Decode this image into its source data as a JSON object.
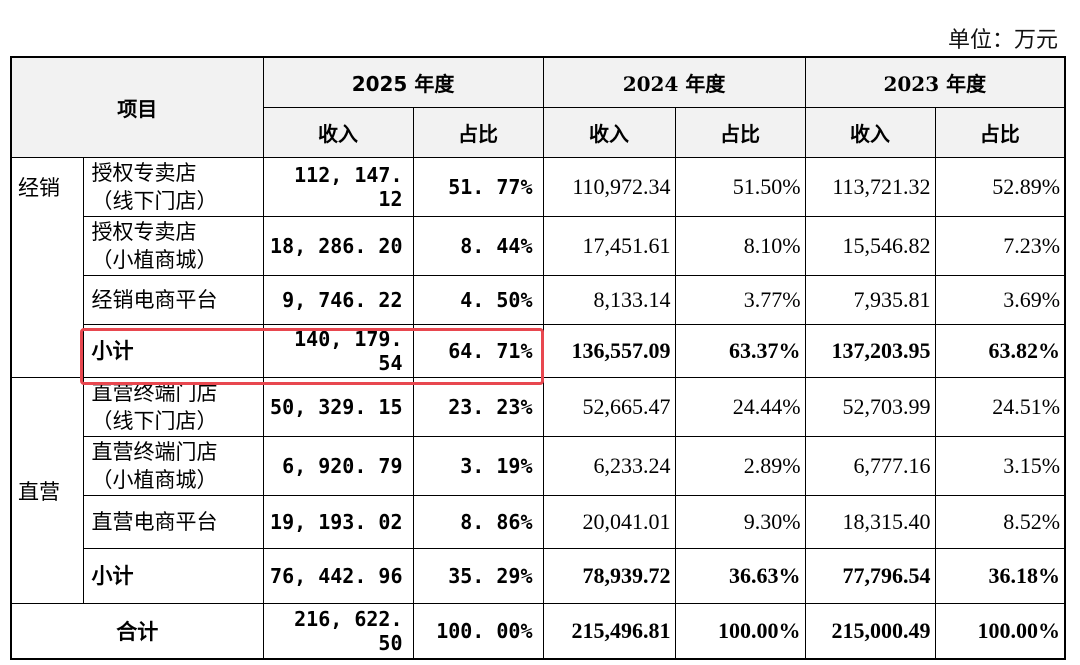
{
  "unit_label": "单位：万元",
  "header": {
    "item_label": "项目",
    "years": [
      "2025 年度",
      "2024 年度",
      "2023 年度"
    ],
    "sub": [
      "收入",
      "占比"
    ]
  },
  "categories": {
    "distribution": "经销",
    "direct": "直营"
  },
  "rows": [
    {
      "item": [
        "授权专卖店",
        "（线下门店）"
      ],
      "r25": "112, 147. 12",
      "p25": "51. 77%",
      "r24": "110,972.34",
      "p24": "51.50%",
      "r23": "113,721.32",
      "p23": "52.89%"
    },
    {
      "item": [
        "授权专卖店",
        "（小植商城）"
      ],
      "r25": "18, 286. 20",
      "p25": "8. 44%",
      "r24": "17,451.61",
      "p24": "8.10%",
      "r23": "15,546.82",
      "p23": "7.23%"
    },
    {
      "item": [
        "经销电商平台"
      ],
      "r25": "9, 746. 22",
      "p25": "4. 50%",
      "r24": "8,133.14",
      "p24": "3.77%",
      "r23": "7,935.81",
      "p23": "3.69%"
    },
    {
      "item": [
        "小计"
      ],
      "r25": "140, 179. 54",
      "p25": "64. 71%",
      "r24": "136,557.09",
      "p24": "63.37%",
      "r23": "137,203.95",
      "p23": "63.82%"
    },
    {
      "item": [
        "直营终端门店",
        "（线下门店）"
      ],
      "r25": "50, 329. 15",
      "p25": "23. 23%",
      "r24": "52,665.47",
      "p24": "24.44%",
      "r23": "52,703.99",
      "p23": "24.51%"
    },
    {
      "item": [
        "直营终端门店",
        "（小植商城）"
      ],
      "r25": "6, 920. 79",
      "p25": "3. 19%",
      "r24": "6,233.24",
      "p24": "2.89%",
      "r23": "6,777.16",
      "p23": "3.15%"
    },
    {
      "item": [
        "直营电商平台"
      ],
      "r25": "19, 193. 02",
      "p25": "8. 86%",
      "r24": "20,041.01",
      "p24": "9.30%",
      "r23": "18,315.40",
      "p23": "8.52%"
    },
    {
      "item": [
        "小计"
      ],
      "r25": "76, 442. 96",
      "p25": "35. 29%",
      "r24": "78,939.72",
      "p24": "36.63%",
      "r23": "77,796.54",
      "p23": "36.18%"
    }
  ],
  "total": {
    "label": "合计",
    "r25": "216, 622. 50",
    "p25": "100. 00%",
    "r24": "215,496.81",
    "p24": "100.00%",
    "r23": "215,000.49",
    "p23": "100.00%"
  },
  "highlight_color": "#e8474f"
}
